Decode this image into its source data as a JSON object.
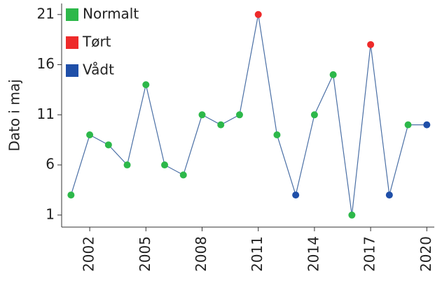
{
  "chart_data": {
    "type": "line",
    "y_label": "Dato i maj",
    "x": [
      2001,
      2002,
      2003,
      2004,
      2005,
      2006,
      2007,
      2008,
      2009,
      2010,
      2011,
      2012,
      2013,
      2014,
      2015,
      2016,
      2017,
      2018,
      2019,
      2020
    ],
    "values": [
      3,
      9,
      8,
      6,
      14,
      6,
      5,
      11,
      10,
      11,
      21,
      9,
      3,
      11,
      15,
      1,
      18,
      3,
      10,
      10
    ],
    "classes": [
      "Normalt",
      "Normalt",
      "Normalt",
      "Normalt",
      "Normalt",
      "Normalt",
      "Normalt",
      "Normalt",
      "Normalt",
      "Normalt",
      "Tørt",
      "Normalt",
      "Vådt",
      "Normalt",
      "Normalt",
      "Normalt",
      "Tørt",
      "Vådt",
      "Normalt",
      "Vådt"
    ],
    "legend": [
      {
        "name": "Normalt",
        "color": "#2db84a"
      },
      {
        "name": "Tørt",
        "color": "#ee2a2a"
      },
      {
        "name": "Vådt",
        "color": "#1f4fa8"
      }
    ],
    "line_color": "#4a6fa5",
    "xlim": [
      2000.5,
      2020.4
    ],
    "ylim": [
      -0.2,
      22.1
    ],
    "xticks": [
      2002,
      2005,
      2008,
      2011,
      2014,
      2017,
      2020
    ],
    "yticks": [
      1,
      6,
      11,
      16,
      21
    ],
    "legend_position": "upper left"
  }
}
